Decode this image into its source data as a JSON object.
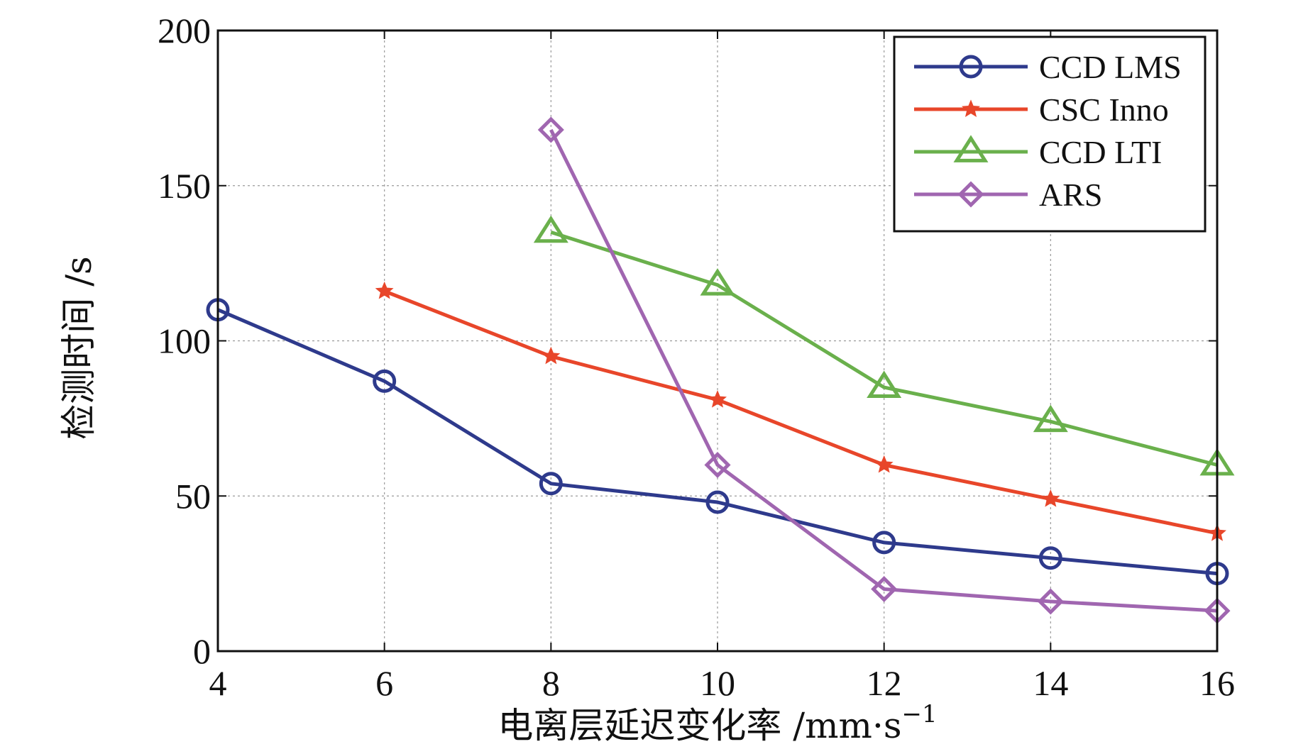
{
  "chart_data": {
    "type": "line",
    "xlabel": "电离层延迟变化率 /mm·s",
    "xlabel_sup": "−1",
    "ylabel": "检测时间 /s",
    "xlim": [
      4,
      16
    ],
    "ylim": [
      0,
      200
    ],
    "xticks": [
      4,
      6,
      8,
      10,
      12,
      14,
      16
    ],
    "yticks": [
      0,
      50,
      100,
      150,
      200
    ],
    "grid": true,
    "legend_position": "top-right",
    "series": [
      {
        "name": "CCD LMS",
        "color": "#2e3a8c",
        "marker": "circle",
        "x": [
          4,
          6,
          8,
          10,
          12,
          14,
          16
        ],
        "y": [
          110,
          87,
          54,
          48,
          35,
          30,
          25
        ]
      },
      {
        "name": "CSC Inno",
        "color": "#e8462a",
        "marker": "star",
        "x": [
          6,
          8,
          10,
          12,
          14,
          16
        ],
        "y": [
          116,
          95,
          81,
          60,
          49,
          38
        ]
      },
      {
        "name": "CCD LTI",
        "color": "#6ab04c",
        "marker": "triangle",
        "x": [
          8,
          10,
          12,
          14,
          16
        ],
        "y": [
          135,
          118,
          85,
          74,
          60
        ]
      },
      {
        "name": "ARS",
        "color": "#a066b0",
        "marker": "diamond",
        "x": [
          8,
          10,
          12,
          14,
          16
        ],
        "y": [
          168,
          60,
          20,
          16,
          13
        ]
      }
    ]
  }
}
